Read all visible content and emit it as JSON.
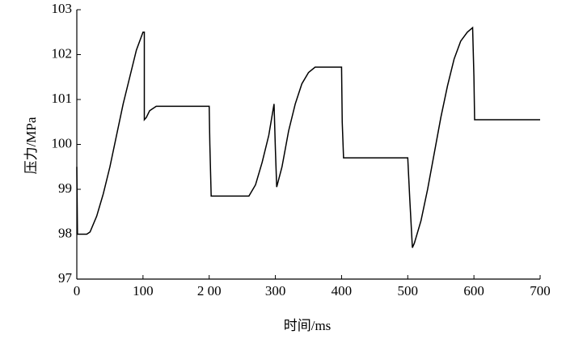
{
  "chart_data": {
    "type": "line",
    "xlabel": "时间/ms",
    "ylabel": "压力/MPa",
    "x": [
      0,
      1,
      2,
      15,
      20,
      30,
      40,
      50,
      60,
      70,
      80,
      90,
      100,
      102,
      102,
      105,
      110,
      120,
      200,
      201,
      203,
      260,
      270,
      280,
      290,
      298,
      300,
      302,
      310,
      320,
      330,
      340,
      350,
      360,
      400,
      401,
      403,
      500,
      503,
      507,
      510,
      520,
      530,
      540,
      550,
      560,
      570,
      580,
      590,
      598,
      600,
      601,
      700
    ],
    "values": [
      99.5,
      98.0,
      98.0,
      98.0,
      98.05,
      98.4,
      98.9,
      99.5,
      100.2,
      100.9,
      101.5,
      102.1,
      102.5,
      102.5,
      100.55,
      100.6,
      100.75,
      100.85,
      100.85,
      100.0,
      98.85,
      98.85,
      99.1,
      99.6,
      100.2,
      100.9,
      99.9,
      99.05,
      99.5,
      100.3,
      100.9,
      101.35,
      101.6,
      101.72,
      101.72,
      100.5,
      99.7,
      99.7,
      98.8,
      97.7,
      97.8,
      98.3,
      99.0,
      99.8,
      100.6,
      101.3,
      101.9,
      102.3,
      102.5,
      102.6,
      101.5,
      100.55,
      100.55
    ],
    "color": "#000000",
    "xlim": [
      0,
      700
    ],
    "xticks": [
      0,
      100,
      {
        "value": 200,
        "label": "2 00"
      },
      300,
      400,
      500,
      600,
      700
    ],
    "ylim": [
      97,
      103
    ],
    "yticks": [
      97,
      98,
      99,
      100,
      101,
      102,
      103
    ]
  }
}
